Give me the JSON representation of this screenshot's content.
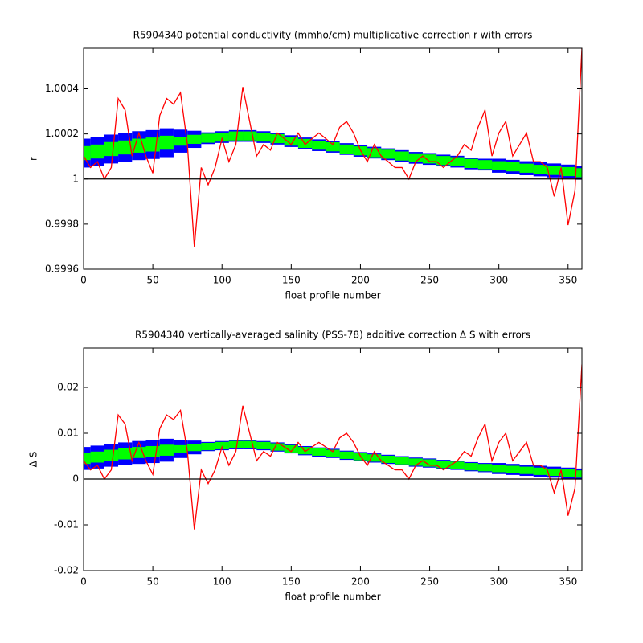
{
  "chart_data": [
    {
      "type": "line",
      "title": "R5904340 potential conductivity (mmho/cm) multiplicative correction r with errors",
      "xlabel": "float profile number",
      "ylabel": "r",
      "xlim": [
        0,
        360
      ],
      "xticks": [
        0,
        50,
        100,
        150,
        200,
        250,
        300,
        350
      ],
      "ylim": [
        0.9996,
        1.00058
      ],
      "yticks": [
        0.9996,
        0.9998,
        1,
        1.0002,
        1.0004
      ],
      "hline": 1,
      "series": [
        {
          "color": "#0000ff",
          "x": [
            0,
            10,
            20,
            30,
            40,
            50,
            60,
            70,
            80,
            90,
            100,
            110,
            120,
            130,
            140,
            150,
            160,
            170,
            180,
            190,
            200,
            210,
            220,
            230,
            240,
            250,
            260,
            270,
            280,
            290,
            300,
            310,
            320,
            330,
            340,
            350,
            360
          ],
          "values": [
            1.000115,
            1.000122,
            1.000133,
            1.00014,
            1.000148,
            1.000153,
            1.000161,
            1.000168,
            1.000176,
            1.000181,
            1.000186,
            1.000191,
            1.000191,
            1.000186,
            1.000179,
            1.000168,
            1.000158,
            1.00015,
            1.000143,
            1.000133,
            1.000125,
            1.000117,
            1.00011,
            1.000102,
            1.000094,
            1.000089,
            1.000082,
            1.000077,
            1.000069,
            1.000064,
            1.000059,
            1.000054,
            1.000048,
            1.000043,
            1.000038,
            1.000033,
            1.000028
          ],
          "errors": [
            6.4e-05,
            6.4e-05,
            6.4e-05,
            6.4e-05,
            6.4e-05,
            6.4e-05,
            6.4e-05,
            5.1e-05,
            3.8e-05,
            2.6e-05,
            2.6e-05,
            2.6e-05,
            2.6e-05,
            2.6e-05,
            2.6e-05,
            2.6e-05,
            2.6e-05,
            2.6e-05,
            2.6e-05,
            2.6e-05,
            2.6e-05,
            2.6e-05,
            2.6e-05,
            2.6e-05,
            2.6e-05,
            2.6e-05,
            2.6e-05,
            2.6e-05,
            2.6e-05,
            2.6e-05,
            3.1e-05,
            3.1e-05,
            3.1e-05,
            3.1e-05,
            3.1e-05,
            3.1e-05,
            3.1e-05
          ]
        },
        {
          "color": "#00ff00",
          "x": [
            0,
            10,
            20,
            30,
            40,
            50,
            60,
            70,
            80,
            90,
            100,
            110,
            120,
            130,
            140,
            150,
            160,
            170,
            180,
            190,
            200,
            210,
            220,
            230,
            240,
            250,
            260,
            270,
            280,
            290,
            300,
            310,
            320,
            330,
            340,
            350,
            360
          ],
          "values": [
            1.000115,
            1.000122,
            1.000133,
            1.00014,
            1.000148,
            1.000153,
            1.000161,
            1.000168,
            1.000176,
            1.000181,
            1.000186,
            1.000191,
            1.000191,
            1.000186,
            1.000179,
            1.000168,
            1.000158,
            1.00015,
            1.000143,
            1.000133,
            1.000125,
            1.000117,
            1.00011,
            1.000102,
            1.000094,
            1.000089,
            1.000082,
            1.000077,
            1.000069,
            1.000064,
            1.000059,
            1.000054,
            1.000048,
            1.000043,
            1.000038,
            1.000033,
            1.000028
          ],
          "errors": [
            3.1e-05,
            3.1e-05,
            3.1e-05,
            3.1e-05,
            3.1e-05,
            3.1e-05,
            3.1e-05,
            2e-05,
            2e-05,
            2e-05,
            2e-05,
            2e-05,
            2e-05,
            2e-05,
            2e-05,
            2e-05,
            2e-05,
            2e-05,
            2e-05,
            2e-05,
            2e-05,
            2e-05,
            2e-05,
            2e-05,
            2e-05,
            2e-05,
            2e-05,
            2e-05,
            2e-05,
            2e-05,
            2e-05,
            2e-05,
            2e-05,
            2e-05,
            2e-05,
            2e-05,
            2e-05
          ]
        },
        {
          "color": "#ff0000",
          "x": [
            0,
            5,
            10,
            15,
            20,
            25,
            30,
            35,
            40,
            45,
            50,
            55,
            60,
            65,
            70,
            75,
            80,
            85,
            90,
            95,
            100,
            105,
            110,
            115,
            120,
            125,
            130,
            135,
            140,
            145,
            150,
            155,
            160,
            165,
            170,
            175,
            180,
            185,
            190,
            195,
            200,
            205,
            210,
            215,
            220,
            225,
            230,
            235,
            240,
            245,
            250,
            255,
            260,
            265,
            270,
            275,
            280,
            285,
            290,
            295,
            300,
            305,
            310,
            315,
            320,
            325,
            330,
            335,
            340,
            345,
            350,
            355,
            360
          ],
          "values": [
            1.000102,
            1.000051,
            1.000077,
            1,
            1.000051,
            1.000357,
            1.000306,
            1.000102,
            1.000204,
            1.000102,
            1.000026,
            1.000281,
            1.000357,
            1.000332,
            1.000383,
            1.000153,
            0.9997,
            1.000051,
            0.999974,
            1.000051,
            1.000179,
            1.000077,
            1.000153,
            1.000408,
            1.000255,
            1.000102,
            1.000153,
            1.000128,
            1.000204,
            1.000179,
            1.000153,
            1.000204,
            1.000153,
            1.000179,
            1.000204,
            1.000179,
            1.000153,
            1.00023,
            1.000255,
            1.000204,
            1.000128,
            1.000077,
            1.000153,
            1.000102,
            1.000077,
            1.000051,
            1.000051,
            1,
            1.000077,
            1.000102,
            1.000077,
            1.000077,
            1.000051,
            1.000077,
            1.000102,
            1.000153,
            1.000128,
            1.00023,
            1.000306,
            1.000102,
            1.000204,
            1.000255,
            1.000102,
            1.000153,
            1.000204,
            1.000077,
            1.000077,
            1.000051,
            0.999923,
            1.000051,
            0.999796,
            0.999949,
            1.00058
          ]
        }
      ]
    },
    {
      "type": "line",
      "title": "R5904340 vertically-averaged salinity (PSS-78) additive correction Δ S with errors",
      "xlabel": "float profile number",
      "ylabel": "Δ S",
      "xlim": [
        0,
        360
      ],
      "xticks": [
        0,
        50,
        100,
        150,
        200,
        250,
        300,
        350
      ],
      "ylim": [
        -0.02,
        0.0286
      ],
      "yticks": [
        -0.02,
        -0.01,
        0,
        0.01,
        0.02
      ],
      "hline": 0,
      "series": [
        {
          "color": "#0000ff",
          "x": [
            0,
            10,
            20,
            30,
            40,
            50,
            60,
            70,
            80,
            90,
            100,
            110,
            120,
            130,
            140,
            150,
            160,
            170,
            180,
            190,
            200,
            210,
            220,
            230,
            240,
            250,
            260,
            270,
            280,
            290,
            300,
            310,
            320,
            330,
            340,
            350,
            360
          ],
          "values": [
            0.0045,
            0.0048,
            0.0052,
            0.0055,
            0.0058,
            0.006,
            0.0063,
            0.0066,
            0.0069,
            0.0071,
            0.0073,
            0.0075,
            0.0075,
            0.0073,
            0.007,
            0.0066,
            0.0062,
            0.0059,
            0.0056,
            0.0052,
            0.0049,
            0.0046,
            0.0043,
            0.004,
            0.0037,
            0.0035,
            0.0032,
            0.003,
            0.0027,
            0.0025,
            0.0023,
            0.0021,
            0.0019,
            0.0017,
            0.0015,
            0.0013,
            0.0011
          ],
          "errors": [
            0.0025,
            0.0025,
            0.0025,
            0.0025,
            0.0025,
            0.0025,
            0.0025,
            0.002,
            0.0015,
            0.001,
            0.001,
            0.001,
            0.001,
            0.001,
            0.001,
            0.001,
            0.001,
            0.001,
            0.001,
            0.001,
            0.001,
            0.001,
            0.001,
            0.001,
            0.001,
            0.001,
            0.001,
            0.001,
            0.001,
            0.001,
            0.0012,
            0.0012,
            0.0012,
            0.0012,
            0.0012,
            0.0012,
            0.0012
          ]
        },
        {
          "color": "#00ff00",
          "x": [
            0,
            10,
            20,
            30,
            40,
            50,
            60,
            70,
            80,
            90,
            100,
            110,
            120,
            130,
            140,
            150,
            160,
            170,
            180,
            190,
            200,
            210,
            220,
            230,
            240,
            250,
            260,
            270,
            280,
            290,
            300,
            310,
            320,
            330,
            340,
            350,
            360
          ],
          "values": [
            0.0045,
            0.0048,
            0.0052,
            0.0055,
            0.0058,
            0.006,
            0.0063,
            0.0066,
            0.0069,
            0.0071,
            0.0073,
            0.0075,
            0.0075,
            0.0073,
            0.007,
            0.0066,
            0.0062,
            0.0059,
            0.0056,
            0.0052,
            0.0049,
            0.0046,
            0.0043,
            0.004,
            0.0037,
            0.0035,
            0.0032,
            0.003,
            0.0027,
            0.0025,
            0.0023,
            0.0021,
            0.0019,
            0.0017,
            0.0015,
            0.0013,
            0.0011
          ],
          "errors": [
            0.0012,
            0.0012,
            0.0012,
            0.0012,
            0.0012,
            0.0012,
            0.0012,
            0.0008,
            0.0008,
            0.0008,
            0.0008,
            0.0008,
            0.0008,
            0.0008,
            0.0008,
            0.0008,
            0.0008,
            0.0008,
            0.0008,
            0.0008,
            0.0008,
            0.0008,
            0.0008,
            0.0008,
            0.0008,
            0.0008,
            0.0008,
            0.0008,
            0.0008,
            0.0008,
            0.0008,
            0.0008,
            0.0008,
            0.0008,
            0.0008,
            0.0008,
            0.0008
          ]
        },
        {
          "color": "#ff0000",
          "x": [
            0,
            5,
            10,
            15,
            20,
            25,
            30,
            35,
            40,
            45,
            50,
            55,
            60,
            65,
            70,
            75,
            80,
            85,
            90,
            95,
            100,
            105,
            110,
            115,
            120,
            125,
            130,
            135,
            140,
            145,
            150,
            155,
            160,
            165,
            170,
            175,
            180,
            185,
            190,
            195,
            200,
            205,
            210,
            215,
            220,
            225,
            230,
            235,
            240,
            245,
            250,
            255,
            260,
            265,
            270,
            275,
            280,
            285,
            290,
            295,
            300,
            305,
            310,
            315,
            320,
            325,
            330,
            335,
            340,
            345,
            350,
            355,
            360
          ],
          "values": [
            0.004,
            0.002,
            0.003,
            0,
            0.002,
            0.014,
            0.012,
            0.004,
            0.008,
            0.004,
            0.001,
            0.011,
            0.014,
            0.013,
            0.015,
            0.006,
            -0.011,
            0.002,
            -0.001,
            0.002,
            0.007,
            0.003,
            0.006,
            0.016,
            0.01,
            0.004,
            0.006,
            0.005,
            0.008,
            0.007,
            0.006,
            0.008,
            0.006,
            0.007,
            0.008,
            0.007,
            0.006,
            0.009,
            0.01,
            0.008,
            0.005,
            0.003,
            0.006,
            0.004,
            0.003,
            0.002,
            0.002,
            0,
            0.003,
            0.004,
            0.003,
            0.003,
            0.002,
            0.003,
            0.004,
            0.006,
            0.005,
            0.009,
            0.012,
            0.004,
            0.008,
            0.01,
            0.004,
            0.006,
            0.008,
            0.003,
            0.003,
            0.002,
            -0.003,
            0.002,
            -0.008,
            -0.002,
            0.025
          ]
        }
      ]
    }
  ]
}
